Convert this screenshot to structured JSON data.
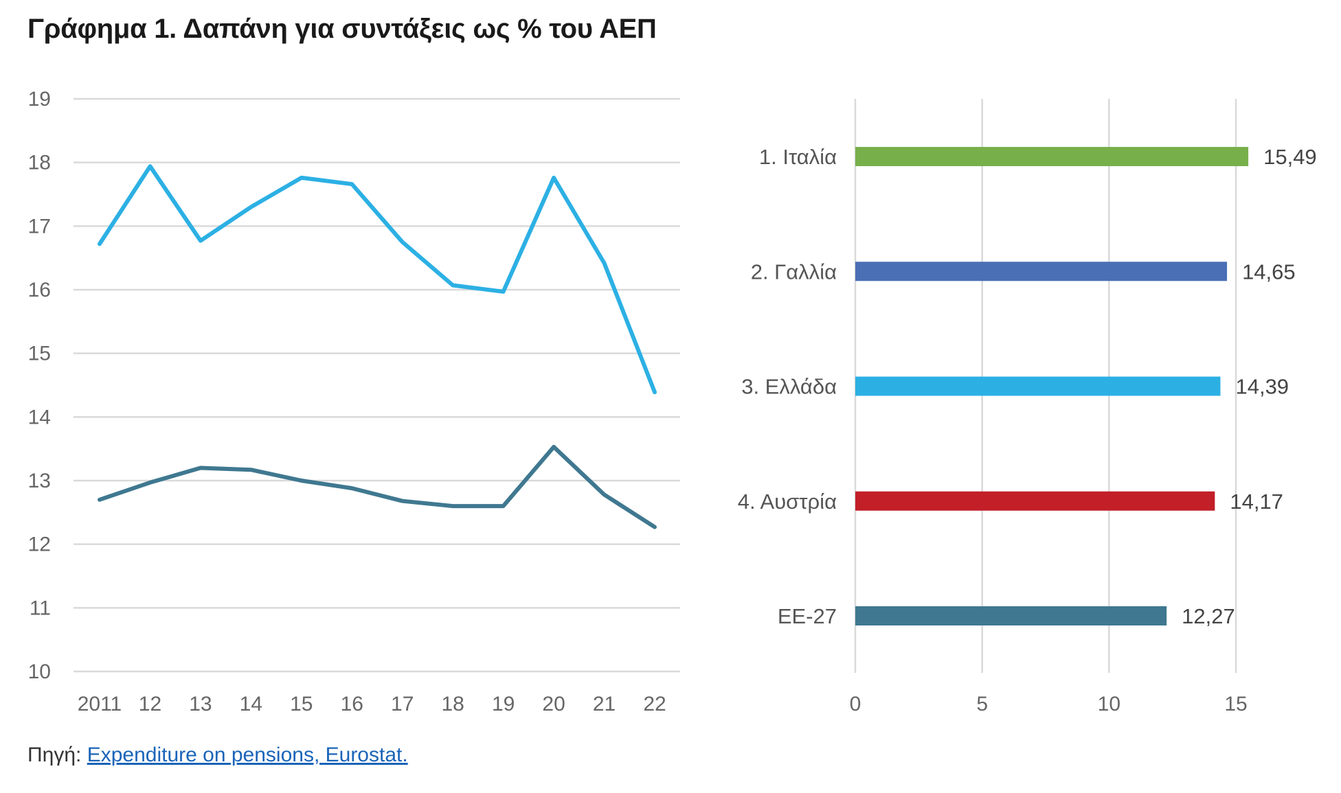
{
  "title": "Γράφημα 1. Δαπάνη για συντάξεις ως % του ΑΕΠ",
  "source": {
    "prefix": "Πηγή:",
    "link_text": "Expenditure on pensions, Eurostat."
  },
  "chart_data": [
    {
      "type": "line",
      "x": [
        "2011",
        "12",
        "13",
        "14",
        "15",
        "16",
        "17",
        "18",
        "19",
        "20",
        "21",
        "22"
      ],
      "series": [
        {
          "color": "#2cb0e4",
          "values": [
            16.72,
            17.94,
            16.77,
            17.3,
            17.76,
            17.66,
            16.75,
            16.07,
            15.97,
            17.76,
            16.42,
            14.39
          ]
        },
        {
          "color": "#3f7890",
          "values": [
            12.7,
            12.97,
            13.2,
            13.17,
            13.0,
            12.88,
            12.68,
            12.6,
            12.6,
            13.53,
            12.78,
            12.27
          ]
        }
      ],
      "ylim": [
        10,
        19
      ],
      "yticks": [
        "10",
        "11",
        "12",
        "13",
        "14",
        "15",
        "16",
        "17",
        "18",
        "19"
      ],
      "grid": true
    },
    {
      "type": "bar",
      "orientation": "horizontal",
      "categories": [
        "1. Ιταλία",
        "2. Γαλλία",
        "3. Ελλάδα",
        "4. Αυστρία",
        "ΕΕ-27"
      ],
      "values": [
        15.49,
        14.65,
        14.39,
        14.17,
        12.27
      ],
      "data_labels": [
        "15,49",
        "14,65",
        "14,39",
        "14,17",
        "12,27"
      ],
      "colors": [
        "#77b04a",
        "#4a6fb5",
        "#2cb0e4",
        "#c21f28",
        "#3f7890"
      ],
      "xlim": [
        0,
        15
      ],
      "xticks": [
        "0",
        "5",
        "10",
        "15"
      ],
      "grid": true
    }
  ]
}
